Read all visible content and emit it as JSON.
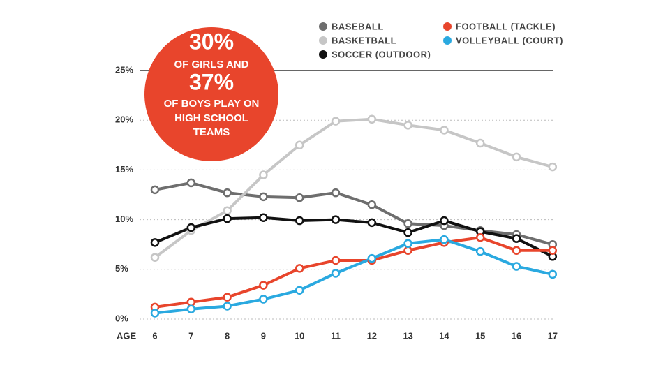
{
  "chart_data": {
    "type": "line",
    "categories": [
      "6",
      "7",
      "8",
      "9",
      "10",
      "11",
      "12",
      "13",
      "14",
      "15",
      "16",
      "17"
    ],
    "x_label": "AGE",
    "series": [
      {
        "name": "BASEBALL",
        "color": "#6e6e6e",
        "values": [
          13.0,
          13.7,
          12.7,
          12.3,
          12.2,
          12.7,
          11.5,
          9.6,
          9.4,
          8.9,
          8.5,
          7.5
        ]
      },
      {
        "name": "BASKETBALL",
        "color": "#c6c6c6",
        "values": [
          6.2,
          8.9,
          10.9,
          14.5,
          17.5,
          19.9,
          20.1,
          19.5,
          19.0,
          17.7,
          16.3,
          15.3
        ]
      },
      {
        "name": "SOCCER (OUTDOOR)",
        "color": "#111111",
        "values": [
          7.7,
          9.2,
          10.1,
          10.2,
          9.9,
          10.0,
          9.7,
          8.7,
          9.9,
          8.8,
          8.1,
          6.3
        ]
      },
      {
        "name": "FOOTBALL (TACKLE)",
        "color": "#e8452c",
        "values": [
          1.2,
          1.7,
          2.2,
          3.4,
          5.1,
          5.9,
          5.9,
          6.9,
          7.7,
          8.2,
          6.9,
          6.9
        ]
      },
      {
        "name": "VOLLEYBALL (COURT)",
        "color": "#2aa9e0",
        "values": [
          0.6,
          1.0,
          1.3,
          2.0,
          2.9,
          4.6,
          6.1,
          7.6,
          8.0,
          6.8,
          5.3,
          4.5
        ]
      }
    ],
    "ylim": [
      0,
      25
    ],
    "yticks": [
      {
        "value": 0,
        "label": "0%"
      },
      {
        "value": 5,
        "label": "5%"
      },
      {
        "value": 10,
        "label": "10%"
      },
      {
        "value": 15,
        "label": "15%"
      },
      {
        "value": 20,
        "label": "20%"
      },
      {
        "value": 25,
        "label": "25%"
      }
    ],
    "grid": true,
    "annotation": [
      "30%",
      "OF GIRLS AND",
      "37%",
      "OF BOYS PLAY ON",
      "HIGH SCHOOL",
      "TEAMS"
    ],
    "annotation_color": "#e8452c"
  }
}
